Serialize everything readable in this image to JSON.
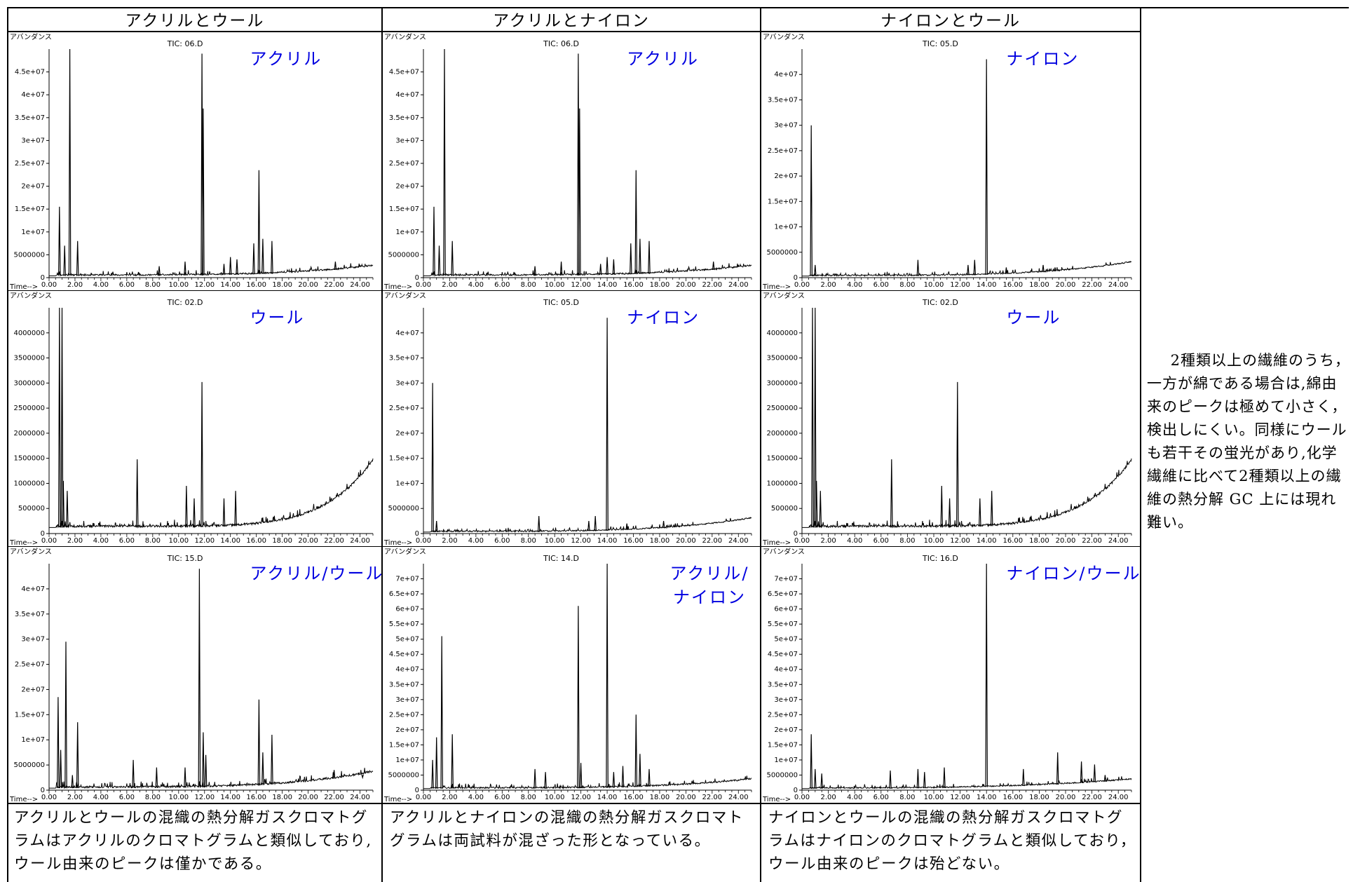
{
  "headers": [
    "アクリルとウール",
    "アクリルとナイロン",
    "ナイロンとウール"
  ],
  "axis_labels": {
    "y": "アバンダンス",
    "x": "Time-->"
  },
  "captions": [
    "アクリルとウールの混織の熱分解ガスクロマトグラムはアクリルのクロマトグラムと類似しており,ウール由来のピークは僅かである。",
    "アクリルとナイロンの混織の熱分解ガスクロマトグラムは両試料が混ざった形となっている。",
    "ナイロンとウールの混織の熱分解ガスクロマトグラムはナイロンのクロマトグラムと類似しており，ウール由来のピークは殆どない。"
  ],
  "side_note": "2種類以上の繊維のうち，一方が綿である場合は,綿由来のピークは極めて小さく，検出しにくい。同様にウールも若干その蛍光があり,化学繊維に比べて2種類以上の繊維の熱分解 GC 上には現れ難い。",
  "colors": {
    "sample_label": "#0000e0",
    "trace": "#000000"
  },
  "chart_data": [
    {
      "type": "line",
      "title": "TIC: 06.D",
      "sample": "アクリル",
      "xlim": [
        0,
        25
      ],
      "ylim": [
        0,
        50000000
      ],
      "x_ticks": [
        "0.00",
        "2.00",
        "4.00",
        "6.00",
        "8.00",
        "10.00",
        "12.00",
        "14.00",
        "16.00",
        "18.00",
        "20.00",
        "22.00",
        "24.00"
      ],
      "y_ticks": [
        {
          "v": 0,
          "t": "0"
        },
        {
          "v": 5000000,
          "t": "5000000"
        },
        {
          "v": 10000000,
          "t": "1e+07"
        },
        {
          "v": 15000000,
          "t": "1.5e+07"
        },
        {
          "v": 20000000,
          "t": "2e+07"
        },
        {
          "v": 25000000,
          "t": "2.5e+07"
        },
        {
          "v": 30000000,
          "t": "3e+07"
        },
        {
          "v": 35000000,
          "t": "3.5e+07"
        },
        {
          "v": 40000000,
          "t": "4e+07"
        },
        {
          "v": 45000000,
          "t": "4.5e+07"
        }
      ],
      "baseline": {
        "start": 400000,
        "end": 2500000,
        "curve": 4
      },
      "peaks": [
        [
          0.8,
          15500000
        ],
        [
          1.2,
          7000000
        ],
        [
          1.6,
          50000000
        ],
        [
          2.2,
          8000000
        ],
        [
          8.5,
          2500000
        ],
        [
          10.5,
          3500000
        ],
        [
          11.8,
          49000000
        ],
        [
          11.9,
          37000000
        ],
        [
          13.5,
          3000000
        ],
        [
          14.0,
          4500000
        ],
        [
          14.5,
          4000000
        ],
        [
          15.8,
          7500000
        ],
        [
          16.2,
          23500000
        ],
        [
          16.5,
          8500000
        ],
        [
          17.2,
          8000000
        ],
        [
          22.1,
          3500000
        ]
      ],
      "noise": 1200000,
      "seed": 11
    },
    {
      "type": "line",
      "title": "TIC: 06.D",
      "sample": "アクリル",
      "xlim": [
        0,
        25
      ],
      "ylim": [
        0,
        50000000
      ],
      "x_ticks": [
        "0.00",
        "2.00",
        "4.00",
        "6.00",
        "8.00",
        "10.00",
        "12.00",
        "14.00",
        "16.00",
        "18.00",
        "20.00",
        "22.00",
        "24.00"
      ],
      "y_ticks": [
        {
          "v": 0,
          "t": "0"
        },
        {
          "v": 5000000,
          "t": "5000000"
        },
        {
          "v": 10000000,
          "t": "1e+07"
        },
        {
          "v": 15000000,
          "t": "1.5e+07"
        },
        {
          "v": 20000000,
          "t": "2e+07"
        },
        {
          "v": 25000000,
          "t": "2.5e+07"
        },
        {
          "v": 30000000,
          "t": "3e+07"
        },
        {
          "v": 35000000,
          "t": "3.5e+07"
        },
        {
          "v": 40000000,
          "t": "4e+07"
        },
        {
          "v": 45000000,
          "t": "4.5e+07"
        }
      ],
      "baseline": {
        "start": 400000,
        "end": 2500000,
        "curve": 4
      },
      "peaks": [
        [
          0.8,
          15500000
        ],
        [
          1.2,
          7000000
        ],
        [
          1.6,
          50000000
        ],
        [
          2.2,
          8000000
        ],
        [
          8.5,
          2500000
        ],
        [
          10.5,
          3500000
        ],
        [
          11.8,
          49000000
        ],
        [
          11.9,
          37000000
        ],
        [
          13.5,
          3000000
        ],
        [
          14.0,
          4500000
        ],
        [
          14.5,
          4000000
        ],
        [
          15.8,
          7500000
        ],
        [
          16.2,
          23500000
        ],
        [
          16.5,
          8500000
        ],
        [
          17.2,
          8000000
        ],
        [
          22.1,
          3500000
        ]
      ],
      "noise": 1200000,
      "seed": 11
    },
    {
      "type": "line",
      "title": "TIC: 05.D",
      "sample": "ナイロン",
      "xlim": [
        0,
        25
      ],
      "ylim": [
        0,
        45000000
      ],
      "x_ticks": [
        "0.00",
        "2.00",
        "4.00",
        "6.00",
        "8.00",
        "10.00",
        "12.00",
        "14.00",
        "16.00",
        "18.00",
        "20.00",
        "22.00",
        "24.00"
      ],
      "y_ticks": [
        {
          "v": 0,
          "t": "0"
        },
        {
          "v": 5000000,
          "t": "5000000"
        },
        {
          "v": 10000000,
          "t": "1e+07"
        },
        {
          "v": 15000000,
          "t": "1.5e+07"
        },
        {
          "v": 20000000,
          "t": "2e+07"
        },
        {
          "v": 25000000,
          "t": "2.5e+07"
        },
        {
          "v": 30000000,
          "t": "3e+07"
        },
        {
          "v": 35000000,
          "t": "3.5e+07"
        },
        {
          "v": 40000000,
          "t": "4e+07"
        }
      ],
      "baseline": {
        "start": 300000,
        "end": 3000000,
        "curve": 4
      },
      "peaks": [
        [
          0.7,
          30000000
        ],
        [
          1.0,
          2500000
        ],
        [
          8.8,
          3500000
        ],
        [
          12.6,
          2500000
        ],
        [
          13.1,
          3500000
        ],
        [
          14.0,
          43000000
        ],
        [
          15.5,
          2000000
        ],
        [
          18.3,
          2500000
        ],
        [
          19.2,
          2000000
        ]
      ],
      "noise": 900000,
      "seed": 23
    },
    {
      "type": "line",
      "title": "TIC: 02.D",
      "sample": "ウール",
      "xlim": [
        0,
        25
      ],
      "ylim": [
        0,
        4500000
      ],
      "x_ticks": [
        "0.00",
        "2.00",
        "4.00",
        "6.00",
        "8.00",
        "10.00",
        "12.00",
        "14.00",
        "16.00",
        "18.00",
        "20.00",
        "22.00",
        "24.00"
      ],
      "y_ticks": [
        {
          "v": 0,
          "t": "0"
        },
        {
          "v": 500000,
          "t": "500000"
        },
        {
          "v": 1000000,
          "t": "1000000"
        },
        {
          "v": 1500000,
          "t": "1500000"
        },
        {
          "v": 2000000,
          "t": "2000000"
        },
        {
          "v": 2500000,
          "t": "2500000"
        },
        {
          "v": 3000000,
          "t": "3000000"
        },
        {
          "v": 3500000,
          "t": "3500000"
        },
        {
          "v": 4000000,
          "t": "4000000"
        }
      ],
      "baseline": {
        "start": 120000,
        "end": 1450000,
        "curve": 7
      },
      "peaks": [
        [
          0.8,
          4500000
        ],
        [
          1.0,
          4500000
        ],
        [
          1.1,
          1050000
        ],
        [
          1.4,
          850000
        ],
        [
          6.8,
          1480000
        ],
        [
          10.6,
          950000
        ],
        [
          11.2,
          700000
        ],
        [
          11.8,
          3020000
        ],
        [
          13.5,
          700000
        ],
        [
          14.4,
          850000
        ]
      ],
      "noise": 160000,
      "seed": 37
    },
    {
      "type": "line",
      "title": "TIC: 05.D",
      "sample": "ナイロン",
      "xlim": [
        0,
        25
      ],
      "ylim": [
        0,
        45000000
      ],
      "x_ticks": [
        "0.00",
        "2.00",
        "4.00",
        "6.00",
        "8.00",
        "10.00",
        "12.00",
        "14.00",
        "16.00",
        "18.00",
        "20.00",
        "22.00",
        "24.00"
      ],
      "y_ticks": [
        {
          "v": 0,
          "t": "0"
        },
        {
          "v": 5000000,
          "t": "5000000"
        },
        {
          "v": 10000000,
          "t": "1e+07"
        },
        {
          "v": 15000000,
          "t": "1.5e+07"
        },
        {
          "v": 20000000,
          "t": "2e+07"
        },
        {
          "v": 25000000,
          "t": "2.5e+07"
        },
        {
          "v": 30000000,
          "t": "3e+07"
        },
        {
          "v": 35000000,
          "t": "3.5e+07"
        },
        {
          "v": 40000000,
          "t": "4e+07"
        }
      ],
      "baseline": {
        "start": 300000,
        "end": 3000000,
        "curve": 4
      },
      "peaks": [
        [
          0.7,
          30000000
        ],
        [
          1.0,
          2500000
        ],
        [
          8.8,
          3500000
        ],
        [
          12.6,
          2500000
        ],
        [
          13.1,
          3500000
        ],
        [
          14.0,
          43000000
        ],
        [
          15.5,
          2000000
        ],
        [
          18.3,
          2500000
        ],
        [
          19.2,
          2000000
        ]
      ],
      "noise": 900000,
      "seed": 23
    },
    {
      "type": "line",
      "title": "TIC: 02.D",
      "sample": "ウール",
      "xlim": [
        0,
        25
      ],
      "ylim": [
        0,
        4500000
      ],
      "x_ticks": [
        "0.00",
        "2.00",
        "4.00",
        "6.00",
        "8.00",
        "10.00",
        "12.00",
        "14.00",
        "16.00",
        "18.00",
        "20.00",
        "22.00",
        "24.00"
      ],
      "y_ticks": [
        {
          "v": 0,
          "t": "0"
        },
        {
          "v": 500000,
          "t": "500000"
        },
        {
          "v": 1000000,
          "t": "1000000"
        },
        {
          "v": 1500000,
          "t": "1500000"
        },
        {
          "v": 2000000,
          "t": "2000000"
        },
        {
          "v": 2500000,
          "t": "2500000"
        },
        {
          "v": 3000000,
          "t": "3000000"
        },
        {
          "v": 3500000,
          "t": "3500000"
        },
        {
          "v": 4000000,
          "t": "4000000"
        }
      ],
      "baseline": {
        "start": 120000,
        "end": 1450000,
        "curve": 7
      },
      "peaks": [
        [
          0.8,
          4500000
        ],
        [
          1.0,
          4500000
        ],
        [
          1.1,
          1050000
        ],
        [
          1.4,
          850000
        ],
        [
          6.8,
          1480000
        ],
        [
          10.6,
          950000
        ],
        [
          11.2,
          700000
        ],
        [
          11.8,
          3020000
        ],
        [
          13.5,
          700000
        ],
        [
          14.4,
          850000
        ]
      ],
      "noise": 160000,
      "seed": 37
    },
    {
      "type": "line",
      "title": "TIC: 15.D",
      "sample": "アクリル/ウール",
      "xlim": [
        0,
        25
      ],
      "ylim": [
        0,
        45000000
      ],
      "x_ticks": [
        "0.00",
        "2.00",
        "4.00",
        "6.00",
        "8.00",
        "10.00",
        "12.00",
        "14.00",
        "16.00",
        "18.00",
        "20.00",
        "22.00",
        "24.00"
      ],
      "y_ticks": [
        {
          "v": 0,
          "t": "0"
        },
        {
          "v": 5000000,
          "t": "5000000"
        },
        {
          "v": 10000000,
          "t": "1e+07"
        },
        {
          "v": 15000000,
          "t": "1.5e+07"
        },
        {
          "v": 20000000,
          "t": "2e+07"
        },
        {
          "v": 25000000,
          "t": "2.5e+07"
        },
        {
          "v": 30000000,
          "t": "3e+07"
        },
        {
          "v": 35000000,
          "t": "3.5e+07"
        },
        {
          "v": 40000000,
          "t": "4e+07"
        }
      ],
      "baseline": {
        "start": 400000,
        "end": 3500000,
        "curve": 4
      },
      "peaks": [
        [
          0.7,
          18500000
        ],
        [
          0.9,
          8000000
        ],
        [
          1.3,
          29500000
        ],
        [
          1.8,
          3000000
        ],
        [
          2.2,
          13500000
        ],
        [
          6.5,
          6000000
        ],
        [
          8.3,
          4500000
        ],
        [
          10.5,
          4500000
        ],
        [
          11.6,
          44000000
        ],
        [
          11.9,
          11500000
        ],
        [
          12.1,
          7000000
        ],
        [
          16.2,
          18000000
        ],
        [
          16.5,
          7500000
        ],
        [
          17.2,
          11000000
        ],
        [
          22.0,
          4000000
        ],
        [
          24.2,
          2500000
        ]
      ],
      "noise": 1400000,
      "seed": 53
    },
    {
      "type": "line",
      "title": "TIC: 14.D",
      "sample": "アクリル/\nナイロン",
      "xlim": [
        0,
        25
      ],
      "ylim": [
        0,
        75000000
      ],
      "x_ticks": [
        "0.00",
        "2.00",
        "4.00",
        "6.00",
        "8.00",
        "10.00",
        "12.00",
        "14.00",
        "16.00",
        "18.00",
        "20.00",
        "22.00",
        "24.00"
      ],
      "y_ticks": [
        {
          "v": 0,
          "t": "0"
        },
        {
          "v": 5000000,
          "t": "5000000"
        },
        {
          "v": 10000000,
          "t": "1e+07"
        },
        {
          "v": 15000000,
          "t": "1.5e+07"
        },
        {
          "v": 20000000,
          "t": "2e+07"
        },
        {
          "v": 25000000,
          "t": "2.5e+07"
        },
        {
          "v": 30000000,
          "t": "3e+07"
        },
        {
          "v": 35000000,
          "t": "3.5e+07"
        },
        {
          "v": 40000000,
          "t": "4e+07"
        },
        {
          "v": 45000000,
          "t": "4.5e+07"
        },
        {
          "v": 50000000,
          "t": "5e+07"
        },
        {
          "v": 55000000,
          "t": "5.5e+07"
        },
        {
          "v": 60000000,
          "t": "6e+07"
        },
        {
          "v": 65000000,
          "t": "6.5e+07"
        },
        {
          "v": 70000000,
          "t": "7e+07"
        }
      ],
      "baseline": {
        "start": 500000,
        "end": 3500000,
        "curve": 4
      },
      "peaks": [
        [
          0.7,
          10000000
        ],
        [
          1.0,
          17500000
        ],
        [
          1.4,
          51000000
        ],
        [
          2.2,
          18500000
        ],
        [
          8.5,
          7000000
        ],
        [
          9.3,
          6000000
        ],
        [
          11.8,
          61000000
        ],
        [
          12.0,
          9000000
        ],
        [
          14.0,
          75000000
        ],
        [
          14.5,
          6000000
        ],
        [
          15.2,
          8000000
        ],
        [
          16.2,
          25000000
        ],
        [
          16.5,
          12000000
        ],
        [
          17.2,
          7000000
        ]
      ],
      "noise": 1800000,
      "seed": 71
    },
    {
      "type": "line",
      "title": "TIC: 16.D",
      "sample": "ナイロン/ウール",
      "xlim": [
        0,
        25
      ],
      "ylim": [
        0,
        75000000
      ],
      "x_ticks": [
        "0.00",
        "2.00",
        "4.00",
        "6.00",
        "8.00",
        "10.00",
        "12.00",
        "14.00",
        "16.00",
        "18.00",
        "20.00",
        "22.00",
        "24.00"
      ],
      "y_ticks": [
        {
          "v": 0,
          "t": "0"
        },
        {
          "v": 5000000,
          "t": "5000000"
        },
        {
          "v": 10000000,
          "t": "1e+07"
        },
        {
          "v": 15000000,
          "t": "1.5e+07"
        },
        {
          "v": 20000000,
          "t": "2e+07"
        },
        {
          "v": 25000000,
          "t": "2.5e+07"
        },
        {
          "v": 30000000,
          "t": "3e+07"
        },
        {
          "v": 35000000,
          "t": "3.5e+07"
        },
        {
          "v": 40000000,
          "t": "4e+07"
        },
        {
          "v": 45000000,
          "t": "4.5e+07"
        },
        {
          "v": 50000000,
          "t": "5e+07"
        },
        {
          "v": 55000000,
          "t": "5.5e+07"
        },
        {
          "v": 60000000,
          "t": "6e+07"
        },
        {
          "v": 65000000,
          "t": "6.5e+07"
        },
        {
          "v": 70000000,
          "t": "7e+07"
        }
      ],
      "baseline": {
        "start": 500000,
        "end": 3500000,
        "curve": 3
      },
      "peaks": [
        [
          0.7,
          18500000
        ],
        [
          1.0,
          7000000
        ],
        [
          1.5,
          5500000
        ],
        [
          6.7,
          6500000
        ],
        [
          8.8,
          7000000
        ],
        [
          9.3,
          6000000
        ],
        [
          10.8,
          7500000
        ],
        [
          14.0,
          75000000
        ],
        [
          16.8,
          7000000
        ],
        [
          19.4,
          12500000
        ],
        [
          21.2,
          9500000
        ],
        [
          22.2,
          8500000
        ],
        [
          23.0,
          5000000
        ]
      ],
      "noise": 1500000,
      "seed": 89
    }
  ]
}
